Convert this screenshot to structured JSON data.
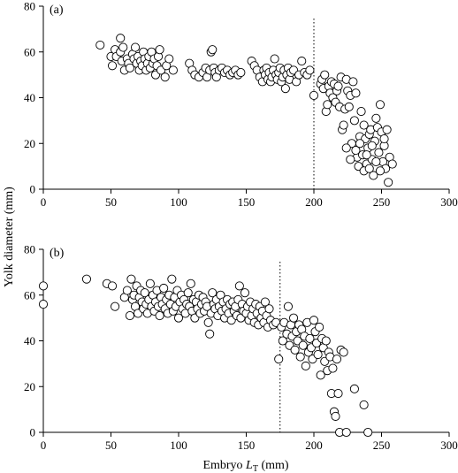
{
  "chart_data": [
    {
      "type": "scatter",
      "panel_label": "(a)",
      "xlim": [
        0,
        300
      ],
      "ylim": [
        0,
        80
      ],
      "x_ticks": [
        0,
        50,
        100,
        150,
        200,
        250,
        300
      ],
      "y_ticks": [
        0,
        20,
        40,
        60,
        80
      ],
      "reference_line_x": 200,
      "points": [
        [
          42,
          63
        ],
        [
          50,
          58
        ],
        [
          51,
          54
        ],
        [
          53,
          61
        ],
        [
          54,
          58
        ],
        [
          57,
          66
        ],
        [
          57,
          60
        ],
        [
          58,
          56
        ],
        [
          59,
          62
        ],
        [
          60,
          52
        ],
        [
          62,
          57
        ],
        [
          63,
          55
        ],
        [
          64,
          53
        ],
        [
          66,
          59
        ],
        [
          67,
          57
        ],
        [
          68,
          62
        ],
        [
          69,
          55
        ],
        [
          70,
          58
        ],
        [
          71,
          52
        ],
        [
          72,
          56
        ],
        [
          73,
          54
        ],
        [
          74,
          60
        ],
        [
          75,
          57
        ],
        [
          76,
          52
        ],
        [
          77,
          55
        ],
        [
          78,
          58
        ],
        [
          79,
          53
        ],
        [
          80,
          60
        ],
        [
          81,
          55
        ],
        [
          82,
          57
        ],
        [
          83,
          50
        ],
        [
          84,
          54
        ],
        [
          85,
          58
        ],
        [
          86,
          61
        ],
        [
          87,
          52
        ],
        [
          90,
          49
        ],
        [
          91,
          54
        ],
        [
          93,
          57
        ],
        [
          96,
          52
        ],
        [
          108,
          55
        ],
        [
          110,
          52
        ],
        [
          112,
          50
        ],
        [
          115,
          49
        ],
        [
          118,
          51
        ],
        [
          120,
          53
        ],
        [
          121,
          49
        ],
        [
          123,
          52
        ],
        [
          124,
          60
        ],
        [
          125,
          61
        ],
        [
          126,
          53
        ],
        [
          127,
          51
        ],
        [
          128,
          49
        ],
        [
          130,
          52
        ],
        [
          132,
          53
        ],
        [
          134,
          51
        ],
        [
          136,
          52
        ],
        [
          138,
          50
        ],
        [
          140,
          51
        ],
        [
          142,
          52
        ],
        [
          144,
          50
        ],
        [
          146,
          51
        ],
        [
          154,
          56
        ],
        [
          156,
          54
        ],
        [
          158,
          52
        ],
        [
          160,
          49
        ],
        [
          162,
          47
        ],
        [
          163,
          52
        ],
        [
          164,
          50
        ],
        [
          165,
          53
        ],
        [
          166,
          48
        ],
        [
          167,
          51
        ],
        [
          168,
          47
        ],
        [
          169,
          49
        ],
        [
          170,
          52
        ],
        [
          171,
          57
        ],
        [
          172,
          50
        ],
        [
          173,
          48
        ],
        [
          174,
          51
        ],
        [
          175,
          53
        ],
        [
          176,
          47
        ],
        [
          177,
          49
        ],
        [
          178,
          52
        ],
        [
          179,
          44
        ],
        [
          180,
          50
        ],
        [
          181,
          53
        ],
        [
          182,
          48
        ],
        [
          183,
          51
        ],
        [
          185,
          52
        ],
        [
          187,
          47
        ],
        [
          189,
          50
        ],
        [
          191,
          56
        ],
        [
          193,
          51
        ],
        [
          195,
          50
        ],
        [
          197,
          52
        ],
        [
          200,
          41
        ],
        [
          205,
          46
        ],
        [
          206,
          48
        ],
        [
          207,
          44
        ],
        [
          208,
          50
        ],
        [
          209,
          34
        ],
        [
          210,
          37
        ],
        [
          211,
          45
        ],
        [
          212,
          42
        ],
        [
          213,
          47
        ],
        [
          214,
          40
        ],
        [
          215,
          46
        ],
        [
          216,
          38
        ],
        [
          217,
          43
        ],
        [
          218,
          45
        ],
        [
          219,
          36
        ],
        [
          220,
          49
        ],
        [
          221,
          26
        ],
        [
          222,
          28
        ],
        [
          223,
          35
        ],
        [
          224,
          48
        ],
        [
          225,
          43
        ],
        [
          226,
          36
        ],
        [
          227,
          41
        ],
        [
          228,
          20
        ],
        [
          229,
          47
        ],
        [
          230,
          30
        ],
        [
          231,
          42
        ],
        [
          232,
          14
        ],
        [
          233,
          10
        ],
        [
          234,
          23
        ],
        [
          235,
          34
        ],
        [
          236,
          15
        ],
        [
          237,
          28
        ],
        [
          238,
          22
        ],
        [
          239,
          11
        ],
        [
          240,
          18
        ],
        [
          241,
          24
        ],
        [
          242,
          26
        ],
        [
          243,
          13
        ],
        [
          244,
          6
        ],
        [
          245,
          21
        ],
        [
          246,
          31
        ],
        [
          247,
          27
        ],
        [
          248,
          16
        ],
        [
          249,
          37
        ],
        [
          250,
          25
        ],
        [
          251,
          12
        ],
        [
          252,
          19
        ],
        [
          253,
          9
        ],
        [
          254,
          26
        ],
        [
          255,
          3
        ],
        [
          256,
          14
        ],
        [
          258,
          11
        ],
        [
          224,
          18
        ],
        [
          227,
          13
        ],
        [
          231,
          17
        ],
        [
          234,
          20
        ],
        [
          237,
          8
        ],
        [
          239,
          15
        ],
        [
          241,
          9
        ],
        [
          243,
          19
        ],
        [
          246,
          12
        ],
        [
          249,
          8
        ],
        [
          252,
          22
        ]
      ]
    },
    {
      "type": "scatter",
      "panel_label": "(b)",
      "xlim": [
        0,
        300
      ],
      "ylim": [
        0,
        80
      ],
      "x_ticks": [
        0,
        50,
        100,
        150,
        200,
        250,
        300
      ],
      "y_ticks": [
        0,
        20,
        40,
        60,
        80
      ],
      "reference_line_x": 175,
      "points": [
        [
          0,
          64
        ],
        [
          0,
          56
        ],
        [
          32,
          67
        ],
        [
          47,
          65
        ],
        [
          51,
          64
        ],
        [
          53,
          55
        ],
        [
          60,
          59
        ],
        [
          62,
          62
        ],
        [
          64,
          51
        ],
        [
          65,
          67
        ],
        [
          66,
          58
        ],
        [
          67,
          60
        ],
        [
          68,
          55
        ],
        [
          69,
          64
        ],
        [
          70,
          52
        ],
        [
          71,
          59
        ],
        [
          72,
          62
        ],
        [
          73,
          57
        ],
        [
          74,
          54
        ],
        [
          75,
          61
        ],
        [
          76,
          56
        ],
        [
          77,
          52
        ],
        [
          78,
          58
        ],
        [
          79,
          65
        ],
        [
          80,
          55
        ],
        [
          81,
          60
        ],
        [
          82,
          53
        ],
        [
          83,
          57
        ],
        [
          84,
          62
        ],
        [
          85,
          55
        ],
        [
          86,
          51
        ],
        [
          87,
          59
        ],
        [
          88,
          56
        ],
        [
          89,
          63
        ],
        [
          90,
          54
        ],
        [
          91,
          58
        ],
        [
          92,
          52
        ],
        [
          93,
          60
        ],
        [
          94,
          56
        ],
        [
          95,
          67
        ],
        [
          96,
          53
        ],
        [
          97,
          59
        ],
        [
          98,
          55
        ],
        [
          99,
          62
        ],
        [
          100,
          50
        ],
        [
          101,
          57
        ],
        [
          102,
          60
        ],
        [
          103,
          54
        ],
        [
          104,
          58
        ],
        [
          105,
          52
        ],
        [
          106,
          56
        ],
        [
          107,
          61
        ],
        [
          108,
          55
        ],
        [
          109,
          65
        ],
        [
          110,
          53
        ],
        [
          111,
          58
        ],
        [
          112,
          50
        ],
        [
          113,
          57
        ],
        [
          114,
          54
        ],
        [
          115,
          60
        ],
        [
          116,
          52
        ],
        [
          117,
          56
        ],
        [
          118,
          59
        ],
        [
          119,
          53
        ],
        [
          120,
          57
        ],
        [
          121,
          55
        ],
        [
          122,
          48
        ],
        [
          123,
          43
        ],
        [
          124,
          52
        ],
        [
          125,
          61
        ],
        [
          126,
          56
        ],
        [
          127,
          54
        ],
        [
          128,
          58
        ],
        [
          129,
          51
        ],
        [
          130,
          55
        ],
        [
          131,
          60
        ],
        [
          132,
          53
        ],
        [
          133,
          57
        ],
        [
          134,
          50
        ],
        [
          135,
          54
        ],
        [
          136,
          58
        ],
        [
          137,
          52
        ],
        [
          138,
          56
        ],
        [
          139,
          49
        ],
        [
          140,
          57
        ],
        [
          141,
          53
        ],
        [
          142,
          55
        ],
        [
          143,
          51
        ],
        [
          144,
          58
        ],
        [
          145,
          64
        ],
        [
          146,
          50
        ],
        [
          147,
          56
        ],
        [
          148,
          53
        ],
        [
          149,
          61
        ],
        [
          150,
          52
        ],
        [
          151,
          55
        ],
        [
          152,
          49
        ],
        [
          153,
          57
        ],
        [
          154,
          51
        ],
        [
          155,
          54
        ],
        [
          156,
          48
        ],
        [
          157,
          56
        ],
        [
          158,
          52
        ],
        [
          159,
          47
        ],
        [
          160,
          55
        ],
        [
          161,
          50
        ],
        [
          162,
          53
        ],
        [
          163,
          48
        ],
        [
          164,
          57
        ],
        [
          165,
          51
        ],
        [
          166,
          46
        ],
        [
          167,
          54
        ],
        [
          168,
          49
        ],
        [
          170,
          47
        ],
        [
          172,
          48
        ],
        [
          174,
          32
        ],
        [
          176,
          46
        ],
        [
          177,
          40
        ],
        [
          178,
          48
        ],
        [
          180,
          43
        ],
        [
          181,
          55
        ],
        [
          182,
          38
        ],
        [
          183,
          47
        ],
        [
          184,
          42
        ],
        [
          185,
          50
        ],
        [
          186,
          36
        ],
        [
          187,
          44
        ],
        [
          188,
          40
        ],
        [
          189,
          47
        ],
        [
          190,
          33
        ],
        [
          191,
          45
        ],
        [
          192,
          38
        ],
        [
          193,
          42
        ],
        [
          194,
          29
        ],
        [
          195,
          48
        ],
        [
          196,
          35
        ],
        [
          197,
          41
        ],
        [
          198,
          37
        ],
        [
          199,
          32
        ],
        [
          200,
          49
        ],
        [
          201,
          44
        ],
        [
          202,
          39
        ],
        [
          203,
          34
        ],
        [
          204,
          46
        ],
        [
          205,
          25
        ],
        [
          206,
          41
        ],
        [
          207,
          37
        ],
        [
          208,
          31
        ],
        [
          209,
          40
        ],
        [
          210,
          27
        ],
        [
          211,
          35
        ],
        [
          212,
          33
        ],
        [
          213,
          17
        ],
        [
          214,
          28
        ],
        [
          215,
          9
        ],
        [
          216,
          7
        ],
        [
          217,
          32
        ],
        [
          218,
          17
        ],
        [
          219,
          0
        ],
        [
          220,
          36
        ],
        [
          222,
          35
        ],
        [
          224,
          0
        ],
        [
          230,
          19
        ],
        [
          237,
          12
        ],
        [
          240,
          0
        ]
      ]
    }
  ],
  "y_axis_title": "Yolk diameter (mm)",
  "x_axis_title_text": "Embryo ",
  "x_axis_title_symbol": "L",
  "x_axis_title_subscript": "T",
  "x_axis_title_unit": " (mm)"
}
